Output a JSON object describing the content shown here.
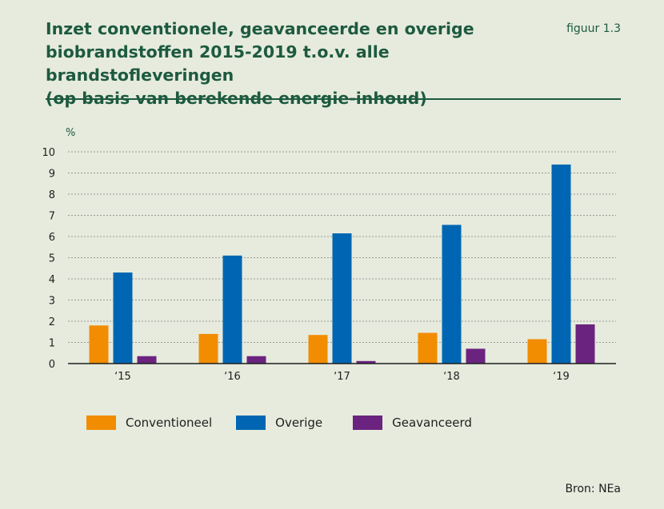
{
  "header": {
    "title_lines": [
      "Inzet conventionele, geavanceerde en overige",
      "biobrandstoffen 2015-2019 t.o.v. alle brandstofleveringen",
      "(op basis van berekende energie-inhoud)"
    ],
    "figure_label": "figuur 1.3"
  },
  "source": "Bron: NEa",
  "chart_data": {
    "type": "bar",
    "title": "Inzet conventionele, geavanceerde en overige biobrandstoffen 2015-2019 t.o.v. alle brandstofleveringen (op basis van berekende energie-inhoud)",
    "ylabel": "%",
    "xlabel": "",
    "ylim": [
      0,
      10
    ],
    "yticks": [
      0,
      1,
      2,
      3,
      4,
      5,
      6,
      7,
      8,
      9,
      10
    ],
    "grid": true,
    "legend_position": "bottom",
    "categories": [
      "‘15",
      "‘16",
      "‘17",
      "‘18",
      "‘19"
    ],
    "series": [
      {
        "name": "Conventioneel",
        "color": "#f28c00",
        "values": [
          1.8,
          1.4,
          1.35,
          1.45,
          1.15
        ]
      },
      {
        "name": "Overige",
        "color": "#0066b3",
        "values": [
          4.3,
          5.1,
          6.15,
          6.55,
          9.4
        ]
      },
      {
        "name": "Geavanceerd",
        "color": "#6b2380",
        "values": [
          0.35,
          0.35,
          0.12,
          0.7,
          1.85
        ]
      }
    ]
  }
}
